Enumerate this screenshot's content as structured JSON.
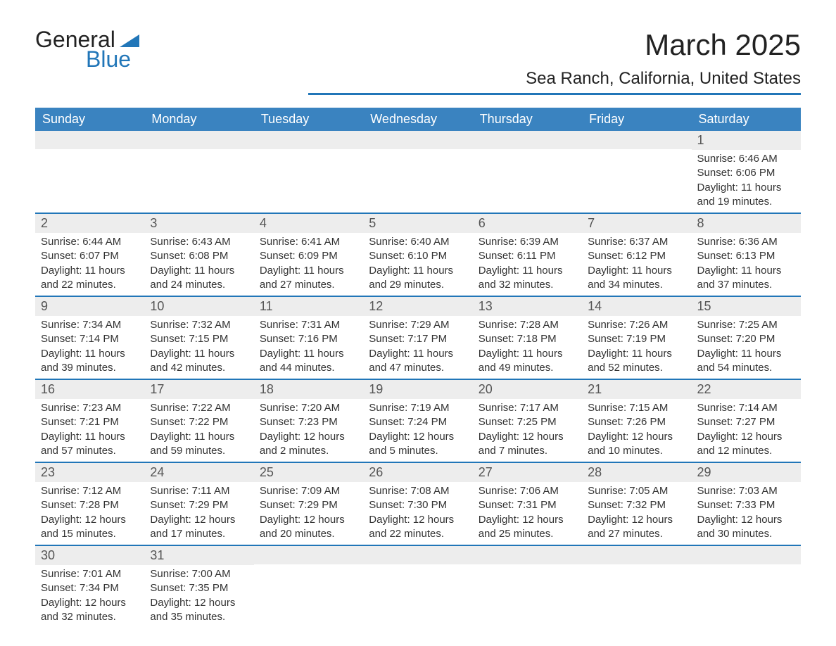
{
  "logo": {
    "line1": "General",
    "line2": "Blue"
  },
  "title": {
    "month": "March 2025",
    "location": "Sea Ranch, California, United States"
  },
  "styling": {
    "header_bg": "#3a83c0",
    "header_text": "#ffffff",
    "accent": "#2176b8",
    "daynum_bg": "#ededed",
    "body_bg": "#ffffff",
    "text_color": "#333333",
    "title_fontsize": 42,
    "location_fontsize": 24,
    "dayheader_fontsize": 18,
    "cell_fontsize": 15
  },
  "day_headers": [
    "Sunday",
    "Monday",
    "Tuesday",
    "Wednesday",
    "Thursday",
    "Friday",
    "Saturday"
  ],
  "weeks": [
    [
      {
        "n": "",
        "sunrise": "",
        "sunset": "",
        "daylight": ""
      },
      {
        "n": "",
        "sunrise": "",
        "sunset": "",
        "daylight": ""
      },
      {
        "n": "",
        "sunrise": "",
        "sunset": "",
        "daylight": ""
      },
      {
        "n": "",
        "sunrise": "",
        "sunset": "",
        "daylight": ""
      },
      {
        "n": "",
        "sunrise": "",
        "sunset": "",
        "daylight": ""
      },
      {
        "n": "",
        "sunrise": "",
        "sunset": "",
        "daylight": ""
      },
      {
        "n": "1",
        "sunrise": "Sunrise: 6:46 AM",
        "sunset": "Sunset: 6:06 PM",
        "daylight": "Daylight: 11 hours and 19 minutes."
      }
    ],
    [
      {
        "n": "2",
        "sunrise": "Sunrise: 6:44 AM",
        "sunset": "Sunset: 6:07 PM",
        "daylight": "Daylight: 11 hours and 22 minutes."
      },
      {
        "n": "3",
        "sunrise": "Sunrise: 6:43 AM",
        "sunset": "Sunset: 6:08 PM",
        "daylight": "Daylight: 11 hours and 24 minutes."
      },
      {
        "n": "4",
        "sunrise": "Sunrise: 6:41 AM",
        "sunset": "Sunset: 6:09 PM",
        "daylight": "Daylight: 11 hours and 27 minutes."
      },
      {
        "n": "5",
        "sunrise": "Sunrise: 6:40 AM",
        "sunset": "Sunset: 6:10 PM",
        "daylight": "Daylight: 11 hours and 29 minutes."
      },
      {
        "n": "6",
        "sunrise": "Sunrise: 6:39 AM",
        "sunset": "Sunset: 6:11 PM",
        "daylight": "Daylight: 11 hours and 32 minutes."
      },
      {
        "n": "7",
        "sunrise": "Sunrise: 6:37 AM",
        "sunset": "Sunset: 6:12 PM",
        "daylight": "Daylight: 11 hours and 34 minutes."
      },
      {
        "n": "8",
        "sunrise": "Sunrise: 6:36 AM",
        "sunset": "Sunset: 6:13 PM",
        "daylight": "Daylight: 11 hours and 37 minutes."
      }
    ],
    [
      {
        "n": "9",
        "sunrise": "Sunrise: 7:34 AM",
        "sunset": "Sunset: 7:14 PM",
        "daylight": "Daylight: 11 hours and 39 minutes."
      },
      {
        "n": "10",
        "sunrise": "Sunrise: 7:32 AM",
        "sunset": "Sunset: 7:15 PM",
        "daylight": "Daylight: 11 hours and 42 minutes."
      },
      {
        "n": "11",
        "sunrise": "Sunrise: 7:31 AM",
        "sunset": "Sunset: 7:16 PM",
        "daylight": "Daylight: 11 hours and 44 minutes."
      },
      {
        "n": "12",
        "sunrise": "Sunrise: 7:29 AM",
        "sunset": "Sunset: 7:17 PM",
        "daylight": "Daylight: 11 hours and 47 minutes."
      },
      {
        "n": "13",
        "sunrise": "Sunrise: 7:28 AM",
        "sunset": "Sunset: 7:18 PM",
        "daylight": "Daylight: 11 hours and 49 minutes."
      },
      {
        "n": "14",
        "sunrise": "Sunrise: 7:26 AM",
        "sunset": "Sunset: 7:19 PM",
        "daylight": "Daylight: 11 hours and 52 minutes."
      },
      {
        "n": "15",
        "sunrise": "Sunrise: 7:25 AM",
        "sunset": "Sunset: 7:20 PM",
        "daylight": "Daylight: 11 hours and 54 minutes."
      }
    ],
    [
      {
        "n": "16",
        "sunrise": "Sunrise: 7:23 AM",
        "sunset": "Sunset: 7:21 PM",
        "daylight": "Daylight: 11 hours and 57 minutes."
      },
      {
        "n": "17",
        "sunrise": "Sunrise: 7:22 AM",
        "sunset": "Sunset: 7:22 PM",
        "daylight": "Daylight: 11 hours and 59 minutes."
      },
      {
        "n": "18",
        "sunrise": "Sunrise: 7:20 AM",
        "sunset": "Sunset: 7:23 PM",
        "daylight": "Daylight: 12 hours and 2 minutes."
      },
      {
        "n": "19",
        "sunrise": "Sunrise: 7:19 AM",
        "sunset": "Sunset: 7:24 PM",
        "daylight": "Daylight: 12 hours and 5 minutes."
      },
      {
        "n": "20",
        "sunrise": "Sunrise: 7:17 AM",
        "sunset": "Sunset: 7:25 PM",
        "daylight": "Daylight: 12 hours and 7 minutes."
      },
      {
        "n": "21",
        "sunrise": "Sunrise: 7:15 AM",
        "sunset": "Sunset: 7:26 PM",
        "daylight": "Daylight: 12 hours and 10 minutes."
      },
      {
        "n": "22",
        "sunrise": "Sunrise: 7:14 AM",
        "sunset": "Sunset: 7:27 PM",
        "daylight": "Daylight: 12 hours and 12 minutes."
      }
    ],
    [
      {
        "n": "23",
        "sunrise": "Sunrise: 7:12 AM",
        "sunset": "Sunset: 7:28 PM",
        "daylight": "Daylight: 12 hours and 15 minutes."
      },
      {
        "n": "24",
        "sunrise": "Sunrise: 7:11 AM",
        "sunset": "Sunset: 7:29 PM",
        "daylight": "Daylight: 12 hours and 17 minutes."
      },
      {
        "n": "25",
        "sunrise": "Sunrise: 7:09 AM",
        "sunset": "Sunset: 7:29 PM",
        "daylight": "Daylight: 12 hours and 20 minutes."
      },
      {
        "n": "26",
        "sunrise": "Sunrise: 7:08 AM",
        "sunset": "Sunset: 7:30 PM",
        "daylight": "Daylight: 12 hours and 22 minutes."
      },
      {
        "n": "27",
        "sunrise": "Sunrise: 7:06 AM",
        "sunset": "Sunset: 7:31 PM",
        "daylight": "Daylight: 12 hours and 25 minutes."
      },
      {
        "n": "28",
        "sunrise": "Sunrise: 7:05 AM",
        "sunset": "Sunset: 7:32 PM",
        "daylight": "Daylight: 12 hours and 27 minutes."
      },
      {
        "n": "29",
        "sunrise": "Sunrise: 7:03 AM",
        "sunset": "Sunset: 7:33 PM",
        "daylight": "Daylight: 12 hours and 30 minutes."
      }
    ],
    [
      {
        "n": "30",
        "sunrise": "Sunrise: 7:01 AM",
        "sunset": "Sunset: 7:34 PM",
        "daylight": "Daylight: 12 hours and 32 minutes."
      },
      {
        "n": "31",
        "sunrise": "Sunrise: 7:00 AM",
        "sunset": "Sunset: 7:35 PM",
        "daylight": "Daylight: 12 hours and 35 minutes."
      },
      {
        "n": "",
        "sunrise": "",
        "sunset": "",
        "daylight": ""
      },
      {
        "n": "",
        "sunrise": "",
        "sunset": "",
        "daylight": ""
      },
      {
        "n": "",
        "sunrise": "",
        "sunset": "",
        "daylight": ""
      },
      {
        "n": "",
        "sunrise": "",
        "sunset": "",
        "daylight": ""
      },
      {
        "n": "",
        "sunrise": "",
        "sunset": "",
        "daylight": ""
      }
    ]
  ]
}
